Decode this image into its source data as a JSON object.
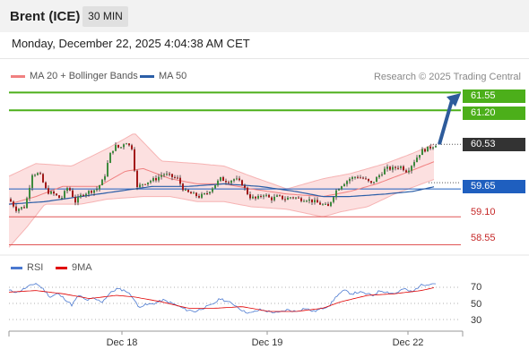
{
  "header": {
    "instrument": "Brent (ICE)",
    "timeframe": "30 MIN",
    "datetime": "Monday, December 22, 2025 4:04:38 AM CET"
  },
  "legend": {
    "ma20": "MA 20 + Bollinger Bands",
    "ma50": "MA 50",
    "ma20_color": "#f08080",
    "ma50_color": "#2b5ea7",
    "copyright": "Research © 2025 Trading Central"
  },
  "levels": {
    "r2": "61.55",
    "r1": "61.20",
    "last": "60.53",
    "pivot": "59.65",
    "s1": "59.10",
    "s2": "58.55",
    "resistance_color": "#4caf1a",
    "pivot_color": "#1f5fbf",
    "support_color": "#e05555"
  },
  "rsi_panel": {
    "legend_rsi": "RSI",
    "legend_ma": "9MA",
    "rsi_color": "#4a78d0",
    "ma_color": "#e00000",
    "ticks": [
      "70",
      "50",
      "30"
    ]
  },
  "dates": [
    "Dec 18",
    "Dec 19",
    "Dec 22"
  ],
  "chart_data": {
    "type": "candlestick",
    "title": "Brent (ICE)",
    "timeframe": "30 MIN",
    "ylim": [
      58.4,
      61.75
    ],
    "x_ticks": [
      "Dec 18",
      "Dec 19",
      "Dec 22"
    ],
    "levels": [
      61.55,
      61.2,
      60.53,
      59.65,
      59.1,
      58.55
    ],
    "last_price": 60.53,
    "price_path": [
      [
        0,
        59.45
      ],
      [
        8,
        59.25
      ],
      [
        18,
        59.3
      ],
      [
        26,
        59.95
      ],
      [
        34,
        59.95
      ],
      [
        42,
        59.6
      ],
      [
        50,
        59.55
      ],
      [
        58,
        59.45
      ],
      [
        66,
        59.7
      ],
      [
        74,
        59.4
      ],
      [
        82,
        59.55
      ],
      [
        90,
        59.6
      ],
      [
        98,
        59.65
      ],
      [
        106,
        59.85
      ],
      [
        112,
        60.3
      ],
      [
        118,
        60.5
      ],
      [
        124,
        60.45
      ],
      [
        130,
        60.6
      ],
      [
        134,
        60.5
      ],
      [
        138,
        60.45
      ],
      [
        142,
        59.65
      ],
      [
        148,
        59.75
      ],
      [
        156,
        59.8
      ],
      [
        164,
        59.85
      ],
      [
        172,
        59.95
      ],
      [
        180,
        59.9
      ],
      [
        188,
        59.85
      ],
      [
        196,
        59.6
      ],
      [
        204,
        59.55
      ],
      [
        212,
        59.5
      ],
      [
        220,
        59.55
      ],
      [
        228,
        59.7
      ],
      [
        236,
        59.85
      ],
      [
        244,
        59.8
      ],
      [
        252,
        59.85
      ],
      [
        260,
        59.75
      ],
      [
        268,
        59.5
      ],
      [
        276,
        59.45
      ],
      [
        284,
        59.55
      ],
      [
        292,
        59.45
      ],
      [
        300,
        59.5
      ],
      [
        308,
        59.45
      ],
      [
        316,
        59.5
      ],
      [
        324,
        59.45
      ],
      [
        332,
        59.45
      ],
      [
        340,
        59.4
      ],
      [
        348,
        59.35
      ],
      [
        356,
        59.3
      ],
      [
        364,
        59.6
      ],
      [
        372,
        59.75
      ],
      [
        380,
        59.85
      ],
      [
        388,
        59.9
      ],
      [
        396,
        59.85
      ],
      [
        404,
        59.75
      ],
      [
        412,
        59.9
      ],
      [
        420,
        60.05
      ],
      [
        428,
        60.05
      ],
      [
        436,
        60.1
      ],
      [
        444,
        60.0
      ],
      [
        452,
        60.2
      ],
      [
        460,
        60.4
      ],
      [
        468,
        60.45
      ],
      [
        476,
        60.53
      ]
    ],
    "bollinger_upper": [
      [
        0,
        59.9
      ],
      [
        30,
        60.15
      ],
      [
        70,
        60.1
      ],
      [
        110,
        60.45
      ],
      [
        140,
        60.75
      ],
      [
        170,
        60.2
      ],
      [
        210,
        60.15
      ],
      [
        240,
        60.1
      ],
      [
        270,
        59.9
      ],
      [
        310,
        59.65
      ],
      [
        350,
        59.85
      ],
      [
        380,
        59.95
      ],
      [
        420,
        60.15
      ],
      [
        450,
        60.35
      ],
      [
        476,
        60.55
      ]
    ],
    "ma20": [
      [
        0,
        59.35
      ],
      [
        30,
        59.5
      ],
      [
        60,
        59.7
      ],
      [
        100,
        59.7
      ],
      [
        130,
        60.0
      ],
      [
        150,
        60.05
      ],
      [
        180,
        59.85
      ],
      [
        210,
        59.75
      ],
      [
        240,
        59.75
      ],
      [
        270,
        59.65
      ],
      [
        310,
        59.55
      ],
      [
        350,
        59.5
      ],
      [
        380,
        59.6
      ],
      [
        410,
        59.75
      ],
      [
        440,
        59.95
      ],
      [
        476,
        60.2
      ]
    ],
    "bollinger_lower": [
      [
        0,
        58.5
      ],
      [
        20,
        58.9
      ],
      [
        40,
        59.35
      ],
      [
        80,
        59.35
      ],
      [
        110,
        59.45
      ],
      [
        150,
        59.5
      ],
      [
        180,
        59.5
      ],
      [
        210,
        59.4
      ],
      [
        240,
        59.4
      ],
      [
        270,
        59.3
      ],
      [
        310,
        59.25
      ],
      [
        350,
        59.1
      ],
      [
        370,
        59.2
      ],
      [
        400,
        59.3
      ],
      [
        430,
        59.55
      ],
      [
        476,
        59.85
      ]
    ],
    "ma50": [
      [
        0,
        59.35
      ],
      [
        40,
        59.4
      ],
      [
        80,
        59.5
      ],
      [
        120,
        59.6
      ],
      [
        160,
        59.7
      ],
      [
        200,
        59.7
      ],
      [
        240,
        59.75
      ],
      [
        280,
        59.7
      ],
      [
        320,
        59.6
      ],
      [
        350,
        59.5
      ],
      [
        380,
        59.5
      ],
      [
        420,
        59.55
      ],
      [
        450,
        59.6
      ],
      [
        476,
        59.7
      ]
    ],
    "projection": {
      "from": 60.53,
      "to": 61.5
    },
    "rsi": {
      "ylim": [
        20,
        80
      ],
      "ticks": [
        70,
        50,
        30
      ],
      "rsi": [
        [
          0,
          66
        ],
        [
          10,
          64
        ],
        [
          20,
          70
        ],
        [
          30,
          75
        ],
        [
          38,
          68
        ],
        [
          46,
          58
        ],
        [
          54,
          62
        ],
        [
          62,
          56
        ],
        [
          70,
          48
        ],
        [
          78,
          60
        ],
        [
          86,
          54
        ],
        [
          94,
          56
        ],
        [
          104,
          52
        ],
        [
          112,
          62
        ],
        [
          120,
          68
        ],
        [
          130,
          66
        ],
        [
          138,
          58
        ],
        [
          144,
          46
        ],
        [
          152,
          48
        ],
        [
          162,
          50
        ],
        [
          172,
          54
        ],
        [
          182,
          50
        ],
        [
          190,
          46
        ],
        [
          198,
          42
        ],
        [
          208,
          40
        ],
        [
          216,
          44
        ],
        [
          226,
          48
        ],
        [
          236,
          56
        ],
        [
          244,
          52
        ],
        [
          252,
          48
        ],
        [
          262,
          40
        ],
        [
          270,
          38
        ],
        [
          280,
          42
        ],
        [
          290,
          40
        ],
        [
          300,
          38
        ],
        [
          310,
          42
        ],
        [
          320,
          40
        ],
        [
          330,
          44
        ],
        [
          340,
          40
        ],
        [
          350,
          44
        ],
        [
          358,
          48
        ],
        [
          366,
          60
        ],
        [
          374,
          66
        ],
        [
          382,
          62
        ],
        [
          390,
          64
        ],
        [
          398,
          62
        ],
        [
          406,
          60
        ],
        [
          414,
          66
        ],
        [
          422,
          64
        ],
        [
          430,
          62
        ],
        [
          440,
          68
        ],
        [
          450,
          64
        ],
        [
          458,
          72
        ],
        [
          466,
          74
        ],
        [
          476,
          75
        ]
      ],
      "ma9": [
        [
          0,
          64
        ],
        [
          30,
          66
        ],
        [
          60,
          62
        ],
        [
          90,
          56
        ],
        [
          120,
          60
        ],
        [
          140,
          58
        ],
        [
          170,
          52
        ],
        [
          200,
          44
        ],
        [
          230,
          44
        ],
        [
          260,
          46
        ],
        [
          290,
          40
        ],
        [
          320,
          40
        ],
        [
          350,
          44
        ],
        [
          370,
          52
        ],
        [
          400,
          60
        ],
        [
          430,
          62
        ],
        [
          460,
          66
        ],
        [
          476,
          70
        ]
      ]
    }
  }
}
